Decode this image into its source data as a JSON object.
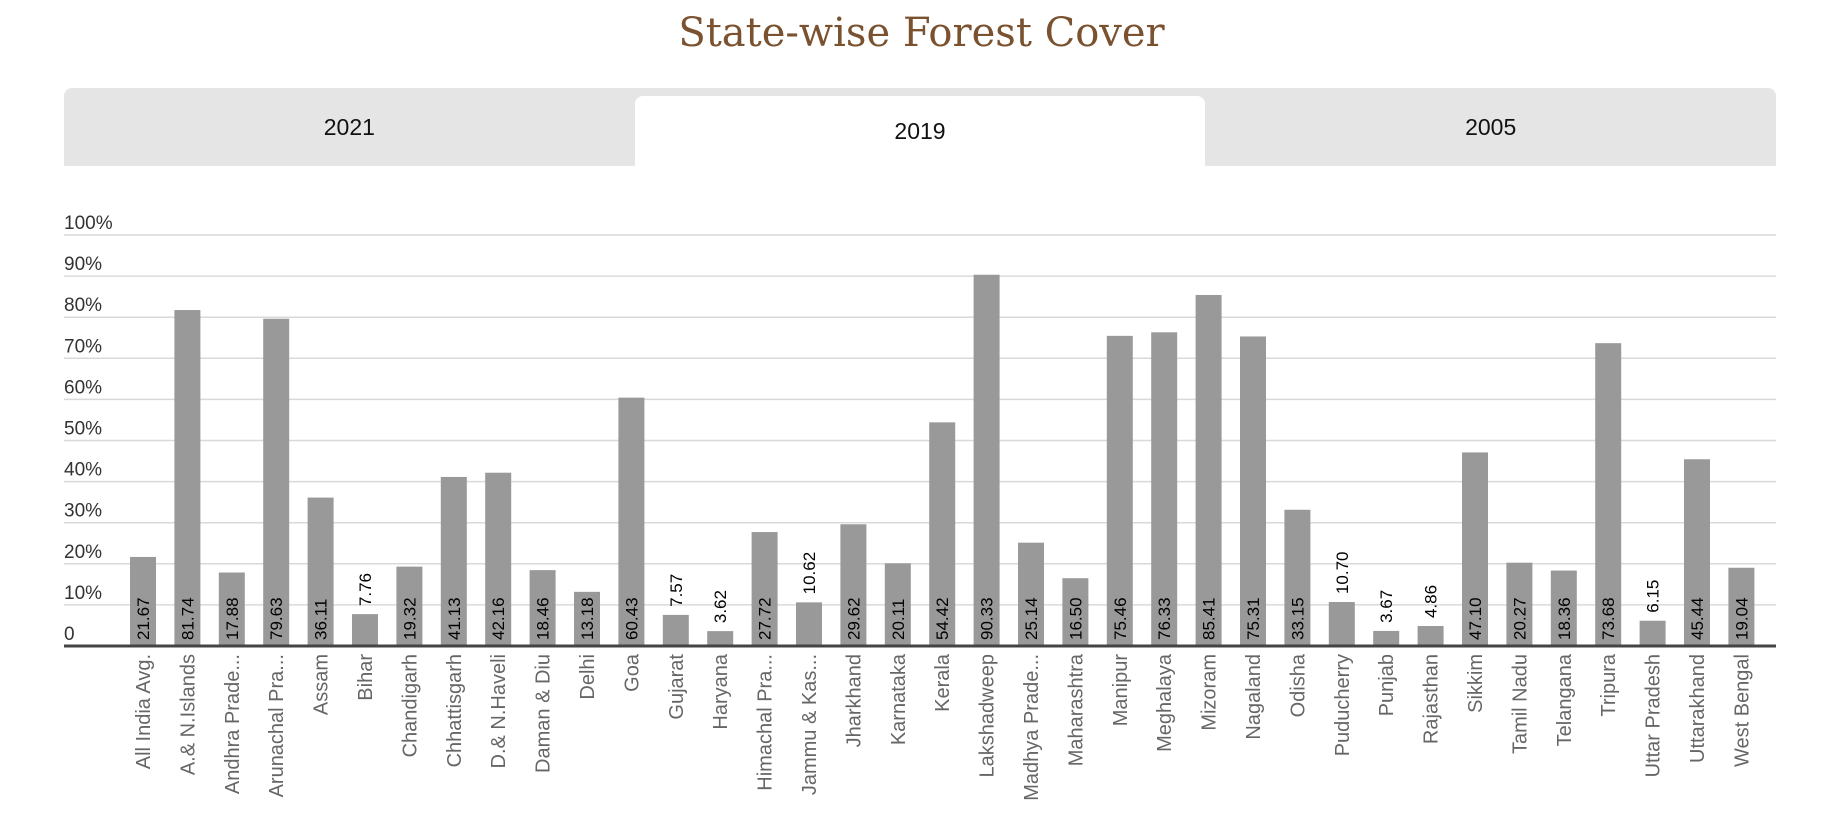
{
  "page": {
    "title": "State-wise Forest Cover",
    "tabs": [
      {
        "label": "2021",
        "active": false
      },
      {
        "label": "2019",
        "active": true
      },
      {
        "label": "2005",
        "active": false
      }
    ]
  },
  "chart_data": {
    "type": "bar",
    "ylim": [
      0,
      100
    ],
    "yticks": [
      "0",
      "10%",
      "20%",
      "30%",
      "40%",
      "50%",
      "60%",
      "70%",
      "80%",
      "90%",
      "100%"
    ],
    "grid": true,
    "bar_color": "#999999",
    "categories": [
      "All India Avg.",
      "A.& N.Islands",
      "Andhra Prade...",
      "Arunachal Pra...",
      "Assam",
      "Bihar",
      "Chandigarh",
      "Chhattisgarh",
      "D.& N.Haveli",
      "Daman & Diu",
      "Delhi",
      "Goa",
      "Gujarat",
      "Haryana",
      "Himachal Pra...",
      "Jammu & Kas...",
      "Jharkhand",
      "Karnataka",
      "Kerala",
      "Lakshadweep",
      "Madhya Prade...",
      "Maharashtra",
      "Manipur",
      "Meghalaya",
      "Mizoram",
      "Nagaland",
      "Odisha",
      "Puducherry",
      "Punjab",
      "Rajasthan",
      "Sikkim",
      "Tamil Nadu",
      "Telangana",
      "Tripura",
      "Uttar Pradesh",
      "Uttarakhand",
      "West Bengal"
    ],
    "values": [
      21.67,
      81.74,
      17.88,
      79.63,
      36.11,
      7.76,
      19.32,
      41.13,
      42.16,
      18.46,
      13.18,
      60.43,
      7.57,
      3.62,
      27.72,
      10.62,
      29.62,
      20.11,
      54.42,
      90.33,
      25.14,
      16.5,
      75.46,
      76.33,
      85.41,
      75.31,
      33.15,
      10.7,
      3.67,
      4.86,
      47.1,
      20.27,
      18.36,
      73.68,
      6.15,
      45.44,
      19.04
    ],
    "value_labels": [
      "21.67",
      "81.74",
      "17.88",
      "79.63",
      "36.11",
      "7.76",
      "19.32",
      "41.13",
      "42.16",
      "18.46",
      "13.18",
      "60.43",
      "7.57",
      "3.62",
      "27.72",
      "10.62",
      "29.62",
      "20.11",
      "54.42",
      "90.33",
      "25.14",
      "16.50",
      "75.46",
      "76.33",
      "85.41",
      "75.31",
      "33.15",
      "10.70",
      "3.67",
      "4.86",
      "47.10",
      "20.27",
      "18.36",
      "73.68",
      "6.15",
      "45.44",
      "19.04"
    ]
  }
}
